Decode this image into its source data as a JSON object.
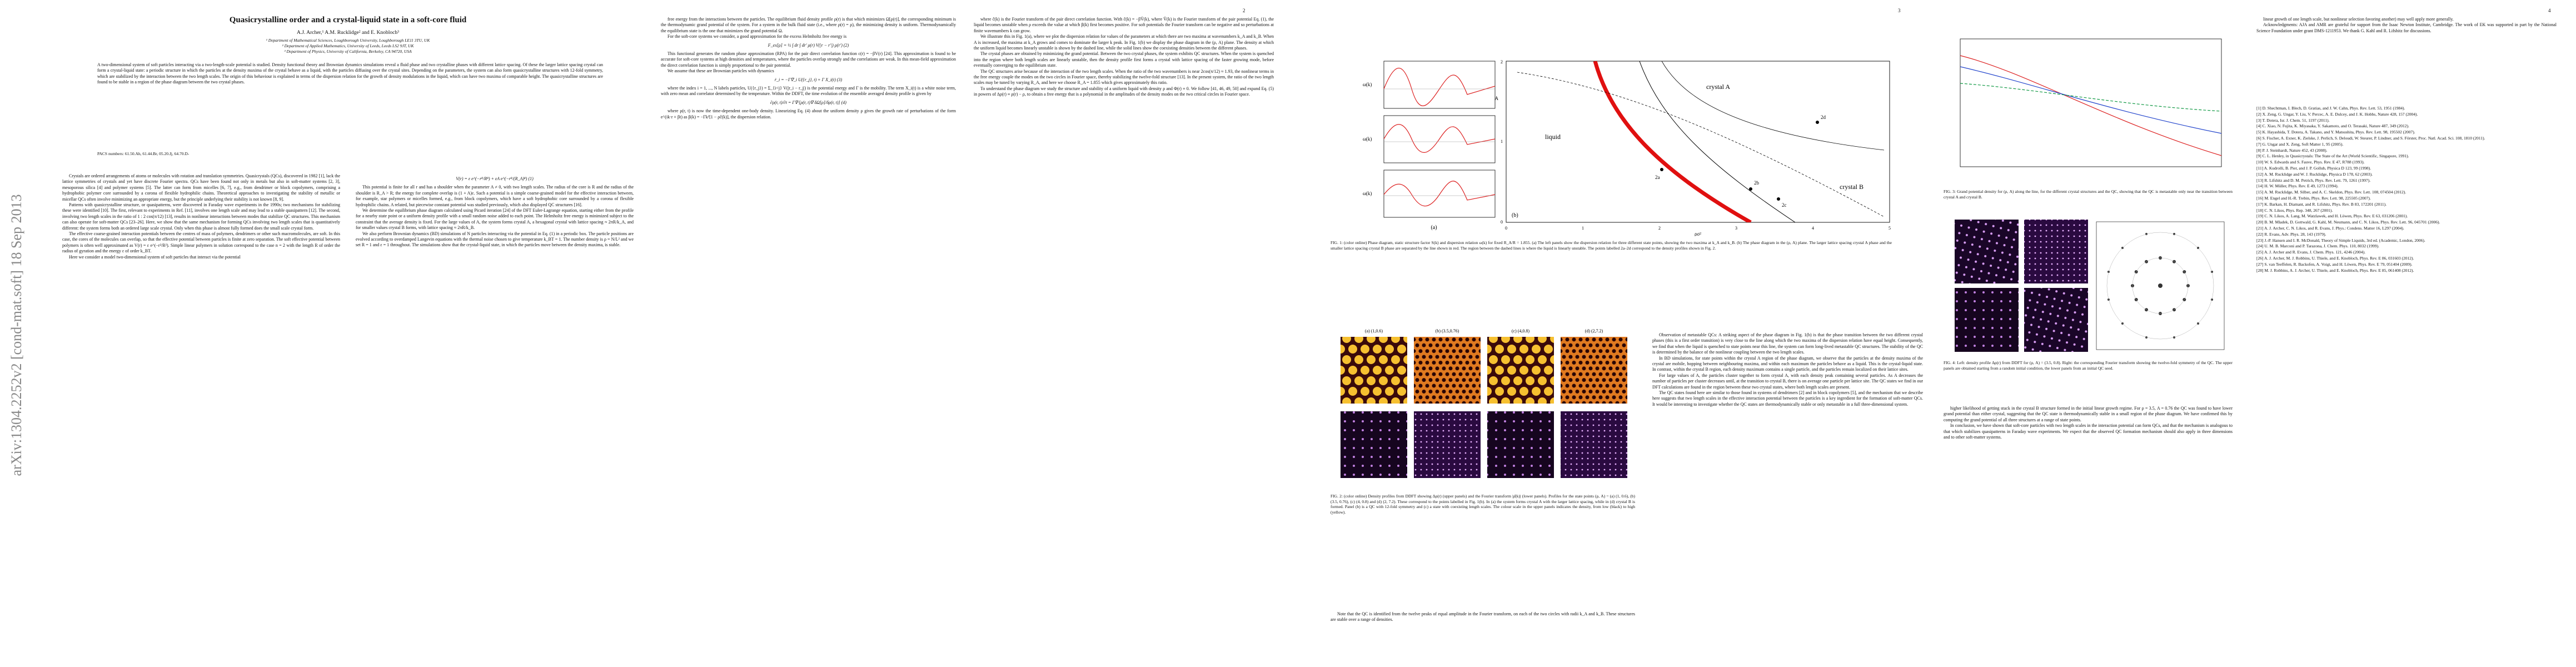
{
  "arxiv_stamp": "arXiv:1304.2252v2  [cond-mat.soft]  18 Sep 2013",
  "page1": {
    "title": "Quasicrystalline order and a crystal-liquid state in a soft-core fluid",
    "authors": "A.J. Archer,¹ A.M. Rucklidge² and E. Knobloch³",
    "affiliations": [
      "¹ Department of Mathematical Sciences, Loughborough University, Loughborough LE11 3TU, UK",
      "² Department of Applied Mathematics, University of Leeds, Leeds LS2 9JT, UK",
      "³ Department of Physics, University of California, Berkeley, CA 94720, USA"
    ],
    "abstract": "A two-dimensional system of soft particles interacting via a two-length-scale potential is studied. Density functional theory and Brownian dynamics simulations reveal a fluid phase and two crystalline phases with different lattice spacing. Of these the larger lattice spacing crystal can form a crystal-liquid state: a periodic structure in which the particles at the density maxima of the crystal behave as a liquid, with the particles diffusing over the crystal sites. Depending on the parameters, the system can also form quasicrystalline structures with 12-fold symmetry, which are stabilized by the interaction between the two length scales. The origin of this behaviour is explained in terms of the dispersion relation for the growth of density modulations in the liquid, which can have two maxima of comparable height. The quasicrystalline structures are found to be stable in a region of the phase diagram between the two crystal phases.",
    "pacs": "PACS numbers: 61.50.Ah, 61.44.Br, 05.20.Jj, 64.70.D-",
    "col1": [
      "Crystals are ordered arrangements of atoms or molecules with rotation and translation symmetries. Quasicrystals (QCs), discovered in 1982 [1], lack the lattice symmetries of crystals and yet have discrete Fourier spectra. QCs have been found not only in metals but also in soft-matter systems [2, 3], mesoporous silica [4] and polymer systems [5]. The latter can form from micelles [6, 7], e.g., from dendrimer or block copolymers, comprising a hydrophobic polymer core surrounded by a corona of flexible hydrophilic chains. Theoretical approaches to investigating the stability of metallic or micellar QCs often involve minimizing an appropriate energy, but the principle underlying their stability is not known [8, 9].",
      "Patterns with quasicrystalline structure, or quasipatterns, were discovered in Faraday wave experiments in the 1990s; two mechanisms for stabilizing these were identified [10]. The first, relevant to experiments in Ref. [11], involves one length scale and may lead to a stable quasipattern [12]. The second, involving two length scales in the ratio of 1 : 2 cos(π/12) [13], results in nonlinear interactions between modes that stabilize QC structures. This mechanism can also operate for soft-matter QCs [23–26]. Here, we show that the same mechanism for forming QCs involving two length scales that is quantitatively different: the system forms both an ordered large scale crystal. Only when this phase is almost fully formed does the small scale crystal form.",
      "The effective coarse-grained interaction potentials between the centres of mass of polymers, dendrimers or other such macromolecules, are soft. In this case, the cores of the molecules can overlap, so that the effective potential between particles is finite at zero separation. The soft effective potential between polymers is often well approximated as V(r) = ε e^(−r²/R²). Simple linear polymers in solution correspond to the case n = 2 with the length R of order the radius of gyration and the energy ε of order k_BT.",
      "Here we consider a model two-dimensional system of soft particles that interact via the potential"
    ],
    "col2": [
      {
        "equation": "V(r) = ε e^(−r⁸/R⁸) + εA e^(−r⁸/(R_A)⁸) (1)"
      },
      "This potential is finite for all r and has a shoulder when the parameter A ≠ 0, with two length scales. The radius of the core is R and the radius of the shoulder is R_A > R; the energy for complete overlap is (1 + A)ε. Such a potential is a simple coarse-grained model for the effective interaction between, for example, star polymers or micelles formed, e.g., from block copolymers, which have a soft hydrophobic core surrounded by a corona of flexible hydrophilic chains. A related, but piecewise constant potential was studied previously, which also displayed QC structures [16].",
      "We determine the equilibrium phase diagram calculated using Picard iteration [24] of the DFT Euler-Lagrange equation, starting either from the profile for a nearby state point or a uniform density profile with a small random noise added to each point. The Helmholtz free energy is minimized subject to the constraint that the average density is fixed. For the large values of A, the system forms crystal A, a hexagonal crystal with lattice spacing ≈ 2πR/k_A, and for smaller values crystal B forms, with lattice spacing ≈ 2πR/k_B.",
      "We also perform Brownian dynamics (BD) simulations of N particles interacting via the potential in Eq. (1) in a periodic box. The particle positions are evolved according to overdamped Langevin equations with the thermal noise chosen to give temperature k_BT = 1. The number density is ρ = N/L² and we set R = 1 and ε = 1 throughout. The simulations show that the crystal-liquid state, in which the particles move between the density maxima, is stable."
    ]
  },
  "page2": {
    "page_number": "2",
    "col1": [
      "free energy from the interactions between the particles. The equilibrium fluid density profile ρ(r) is that which minimizes Ω[ρ(r)], the corresponding minimum is the thermodynamic grand potential of the system. For a system in the bulk fluid state (i.e., where ρ(r) = ρ), the minimizing density is uniform. Thermodynamically the equilibrium state is the one that minimizes the grand potential Ω.",
      "For the soft-core systems we consider, a good approximation for the excess Helmholtz free energy is",
      {
        "equation": "F_ex[ρ] = ½ ∫ dr ∫ dr′ ρ(r) V(|r − r′|) ρ(r′) (2)"
      },
      "This functional generates the random phase approximation (RPA) for the pair direct correlation function c(r) = −βV(r) [24]. This approximation is found to be accurate for soft-core systems at high densities and temperatures, where the particles overlap strongly and the correlations are weak. In this mean-field approximation the direct correlation function is simply proportional to the pair potential.",
      "We assume that these are Brownian particles with dynamics",
      {
        "equation": "ṙ_i = −Γ∇_i U({r_j}, t) + Γ X_i(t) (3)"
      },
      "where the index i = 1, ..., N labels particles, U({r_j}) = Σ_{i<j} V(|r_i − r_j|) is the potential energy and Γ is the mobility. The term X_i(t) is a white noise term, with zero mean and correlator determined by the temperature. Within the DDFT, the time evolution of the ensemble averaged density profile is given by",
      {
        "equation": "∂ρ(r, t)/∂t = Γ∇·[ρ(r, t)∇ δΩ[ρ]/δρ(r, t)] (4)"
      },
      "where ρ(r, t) is now the time-dependent one-body density. Linearizing Eq. (4) about the uniform density ρ gives the growth rate of perturbations of the form e^(ik·r + βt) as β(k) = −Γk²[1 − ρĉ(k)], the dispersion relation."
    ],
    "col2": [
      "where ĉ(k) is the Fourier transform of the pair direct correlation function. With ĉ(k) = −βV̂(k), where V̂(k) is the Fourier transform of the pair potential Eq. (1), the liquid becomes unstable when ρ exceeds the value at which β(k) first becomes positive. For soft potentials the Fourier transform can be negative and so perturbations at finite wavenumbers k can grow.",
      "We illustrate this in Fig. 1(a), where we plot the dispersion relation for values of the parameters at which there are two maxima at wavenumbers k_A and k_B. When A is increased, the maxima at k_A grows and comes to dominate the larger k peak. In Fig. 1(b) we display the phase diagram in the (ρ, A) plane. The density at which the uniform liquid becomes linearly unstable is shown by the dashed line, while the solid lines show the coexisting densities between the different phases.",
      "The crystal phases are obtained by minimizing the grand potential. Between the two crystal phases, the system exhibits QC structures. When the system is quenched into the region where both length scales are linearly unstable, then the density profile first forms a crystal with lattice spacing of the faster growing mode, before eventually converging to the equilibrium state.",
      "The QC structures arise because of the interaction of the two length scales. When the ratio of the two wavenumbers is near 2cos(π/12) ≈ 1.93, the nonlinear terms in the free energy couple the modes on the two circles in Fourier space, thereby stabilizing the twelve-fold structure [13]. In the present system, the ratio of the two length scales may be tuned by varying R_A, and here we choose R_A = 1.855 which gives approximately this ratio.",
      "To understand the phase diagram we study the structure and stability of a uniform liquid with density ρ and Φ(r) ≡ 0. We follow [41, 46, 49, 50] and expand Eq. (5) in powers of ∆ρ(r) ≡ ρ(r) − ρ, to obtain a free energy that is a polynomial in the amplitudes of the density modes on the two critical circles in Fourier space."
    ]
  },
  "page3": {
    "page_number": "3",
    "figure1": {
      "panel_labels": [
        "(a)",
        "(b)"
      ],
      "small_labels": [
        "ω(k)",
        "ω(k)",
        "ω(k)"
      ],
      "regions": [
        "liquid",
        "crystal A",
        "crystal B"
      ],
      "points": [
        "2a",
        "2b",
        "2c",
        "2d"
      ],
      "x_label": "ρσ²",
      "y_label": "A",
      "x_ticks": [
        "0",
        "1",
        "2",
        "3",
        "4",
        "5"
      ],
      "y_ticks": [
        "0",
        "1",
        "2"
      ],
      "caption": "FIG. 1: (color online) Phase diagram, static structure factor S(k) and dispersion relation ω(k) for fixed R_A/R = 1.855. (a) The left panels show the dispersion relation for three different state points, showing the two maxima at k_A and k_B. (b) The phase diagram in the (ρ, A) plane. The larger lattice spacing crystal A phase and the smaller lattice spacing crystal B phase are separated by the line shown in red. The region between the dashed lines is where the liquid is linearly unstable. The points labelled 2a–2d correspond to the density profiles shown in Fig. 2."
    },
    "figure2": {
      "panel_labels": [
        "(a) (1,0.6)",
        "(b) (3.5,0.76)",
        "(c) (4,0.8)",
        "(d) (2,7.2)"
      ],
      "caption": "FIG. 2: (color online) Density profiles from DDFT showing Δρ(r) (upper panels) and the Fourier transform |ρ̂(k)| (lower panels). Profiles for the state points (ρ, A) = (a) (1, 0.6), (b) (3.5, 0.76), (c) (4, 0.8) and (d) (2, 7.2). These correspond to the points labelled in Fig. 1(b). In (a) the system forms crystal A with the larger lattice spacing, while in (d) crystal B is formed. Panel (b) is a QC with 12-fold symmetry and (c) a state with coexisting length scales. The colour scale in the upper panels indicates the density, from low (black) to high (yellow)."
    },
    "col1": [
      "Note that the QC is identified from the twelve peaks of equal amplitude in the Fourier transform, on each of the two circles with radii k_A and k_B. These structures are stable over a range of densities."
    ],
    "col2": [
      "Observation of metastable QCs: A striking aspect of the phase diagram in Fig. 1(b) is that the phase transition between the two different crystal phases (this is a first order transition) is very close to the line along which the two maxima of the dispersion relation have equal height. Consequently, we find that when the liquid is quenched to state points near this line, the system can form long-lived metastable QC structures. The stability of the QC is determined by the balance of the nonlinear coupling between the two length scales.",
      "In BD simulations, for state points within the crystal A region of the phase diagram, we observe that the particles at the density maxima of the crystal are mobile, hopping between neighbouring maxima, and within each maximum the particles behave as a liquid. This is the crystal-liquid state. In contrast, within the crystal B region, each density maximum contains a single particle, and the particles remain localized on their lattice sites.",
      "For large values of A, the particles cluster together to form crystal A, with each density peak containing several particles. As A decreases the number of particles per cluster decreases until, at the transition to crystal B, there is on average one particle per lattice site. The QC states we find in our DFT calculations are found in the region between these two crystal states, where both length scales are present.",
      "The QC states found here are similar to those found in systems of dendrimers [2] and in block copolymers [5], and the mechanism that we describe here suggests that two length scales in the effective interaction potential between the particles is a key ingredient for the formation of soft-matter QCs. It would be interesting to investigate whether the QC states are thermodynamically stable or only metastable in a full three-dimensional system."
    ]
  },
  "page4": {
    "page_number": "4",
    "figure3": {
      "caption": "FIG. 3: Grand potential density for (ρ, A) along the line, for the different crystal structures and the QC, showing that the QC is metastable only near the transition between crystal A and crystal B."
    },
    "figure4": {
      "caption": "FIG. 4: Left: density profile Δρ(r) from DDFT for (ρ, A) = (3.5, 0.8). Right: the corresponding Fourier transform showing the twelve-fold symmetry of the QC. The upper panels are obtained starting from a random initial condition, the lower panels from an initial QC seed."
    },
    "col1": [
      "higher likelihood of getting stuck in the crystal B structure formed in the initial linear growth regime. For ρ = 3.5, A = 0.76 the QC was found to have lower grand potential than either crystal, suggesting that the QC state is thermodynamically stable in a small region of the phase diagram. We have confirmed this by computing the grand potential of all three structures at a range of state points.",
      "In conclusion, we have shown that soft-core particles with two length scales in the interaction potential can form QCs, and that the mechanism is analogous to that which stabilizes quasipatterns in Faraday wave experiments. We expect that the observed QC formation mechanism should also apply in three dimensions and to other soft-matter systems."
    ],
    "col2": [
      "linear growth of one length scale, but nonlinear selection favoring another) may well apply more generally.",
      "Acknowledgments: AJA and AMR are grateful for support from the Isaac Newton Institute, Cambridge. The work of EK was supported in part by the National Science Foundation under grant DMS-1211953. We thank G. Kahl and R. Lifshitz for discussions."
    ],
    "references": [
      "[1] D. Shechtman, I. Blech, D. Gratias, and J. W. Cahn, Phys. Rev. Lett. 53, 1951 (1984).",
      "[2] X. Zeng, G. Ungar, Y. Liu, V. Percec, A. E. Dulcey, and J. K. Hobbs, Nature 428, 157 (2004).",
      "[3] T. Dotera, Isr. J. Chem. 51, 1197 (2011).",
      "[4] C. Xiao, N. Fujita, K. Miyasaka, Y. Sakamoto, and O. Terasaki, Nature 487, 349 (2012).",
      "[5] K. Hayashida, T. Dotera, A. Takano, and Y. Matsushita, Phys. Rev. Lett. 98, 195502 (2007).",
      "[6] S. Fischer, A. Exner, K. Zielske, J. Perlich, S. Deloudi, W. Steurer, P. Lindner, and S. Förster, Proc. Natl. Acad. Sci. 108, 1810 (2011).",
      "[7] G. Ungar and X. Zeng, Soft Matter 1, 95 (2005).",
      "[8] P. J. Steinhardt, Nature 452, 43 (2008).",
      "[9] C. L. Henley, in Quasicrystals: The State of the Art (World Scientific, Singapore, 1991).",
      "[10] W. S. Edwards and S. Fauve, Phys. Rev. E 47, R788 (1993).",
      "[11] A. Kudrolli, B. Pier, and J. P. Gollub, Physica D 123, 99 (1998).",
      "[12] A. M. Rucklidge and W. J. Rucklidge, Physica D 178, 62 (2003).",
      "[13] R. Lifshitz and D. M. Petrich, Phys. Rev. Lett. 79, 1261 (1997).",
      "[14] H. W. Müller, Phys. Rev. E 49, 1273 (1994).",
      "[15] A. M. Rucklidge, M. Silber, and A. C. Skeldon, Phys. Rev. Lett. 108, 074504 (2012).",
      "[16] M. Engel and H.-R. Trebin, Phys. Rev. Lett. 98, 225505 (2007).",
      "[17] K. Barkan, H. Diamant, and R. Lifshitz, Phys. Rev. B 83, 172201 (2011).",
      "[18] C. N. Likos, Phys. Rep. 348, 267 (2001).",
      "[19] C. N. Likos, A. Lang, M. Watzlawek, and H. Löwen, Phys. Rev. E 63, 031206 (2001).",
      "[20] B. M. Mladek, D. Gottwald, G. Kahl, M. Neumann, and C. N. Likos, Phys. Rev. Lett. 96, 045701 (2006).",
      "[21] A. J. Archer, C. N. Likos, and R. Evans, J. Phys.: Condens. Matter 16, L297 (2004).",
      "[22] R. Evans, Adv. Phys. 28, 143 (1979).",
      "[23] J.-P. Hansen and I. R. McDonald, Theory of Simple Liquids, 3rd ed. (Academic, London, 2006).",
      "[24] U. M. B. Marconi and P. Tarazona, J. Chem. Phys. 110, 8032 (1999).",
      "[25] A. J. Archer and R. Evans, J. Chem. Phys. 121, 4246 (2004).",
      "[26] A. J. Archer, M. J. Robbins, U. Thiele, and E. Knobloch, Phys. Rev. E 86, 031603 (2012).",
      "[27] S. van Teeffelen, R. Backofen, A. Voigt, and H. Löwen, Phys. Rev. E 79, 051404 (2009).",
      "[28] M. J. Robbins, A. J. Archer, U. Thiele, and E. Knobloch, Phys. Rev. E 85, 061408 (2012)."
    ]
  }
}
